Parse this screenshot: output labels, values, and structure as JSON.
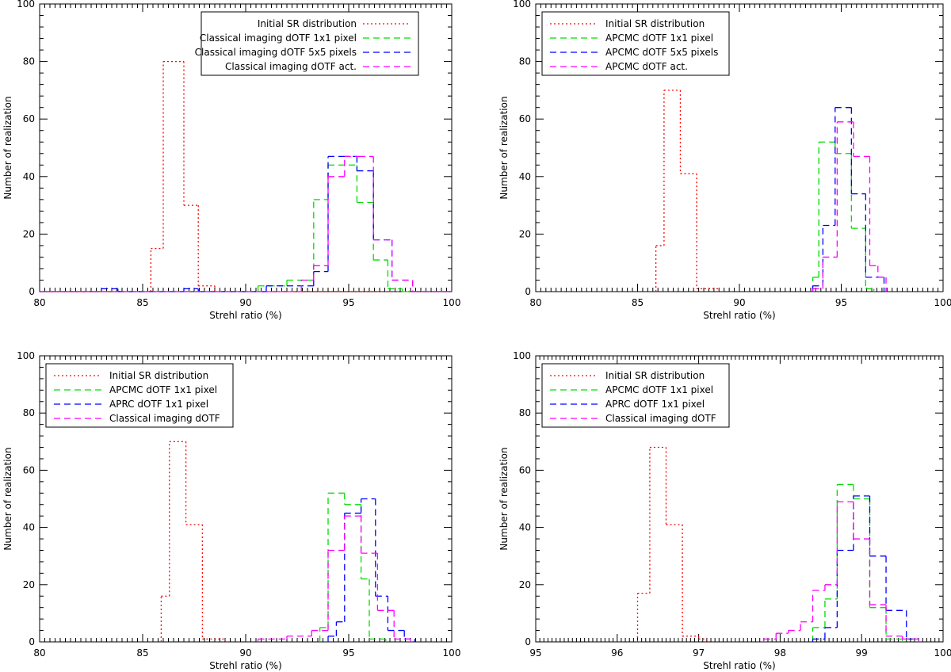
{
  "chart_data": [
    {
      "type": "histogram",
      "xlabel": "Strehl ratio (%)",
      "ylabel": "Number of realization",
      "xlim": [
        80,
        100
      ],
      "ylim": [
        0,
        100
      ],
      "xticks": [
        "80",
        "85",
        "90",
        "95",
        "100"
      ],
      "yticks": [
        "0",
        "20",
        "40",
        "60",
        "80",
        "100"
      ],
      "legend_position": "top-right",
      "legend_align": "right",
      "series": [
        {
          "name": "Initial SR distribution",
          "color": "#ff0000",
          "style": "dotted",
          "bins": [
            [
              80,
              85.4,
              0
            ],
            [
              85.4,
              86,
              15
            ],
            [
              86,
              87,
              80
            ],
            [
              87,
              87.7,
              30
            ],
            [
              87.7,
              88.5,
              2
            ],
            [
              88.5,
              100,
              0
            ]
          ]
        },
        {
          "name": "Classical imaging dOTF 1x1 pixel",
          "color": "#00dd00",
          "style": "dashed",
          "bins": [
            [
              80,
              90.6,
              0
            ],
            [
              90.6,
              92,
              2
            ],
            [
              92,
              93.3,
              4
            ],
            [
              93.3,
              94,
              32
            ],
            [
              94,
              95.4,
              44
            ],
            [
              95.4,
              96.2,
              31
            ],
            [
              96.2,
              96.9,
              11
            ],
            [
              96.9,
              97.6,
              1
            ],
            [
              97.6,
              100,
              0
            ]
          ]
        },
        {
          "name": "Classical imaging dOTF 5x5 pixels",
          "color": "#0000ff",
          "style": "dashed",
          "bins": [
            [
              80,
              83,
              0
            ],
            [
              83,
              83.8,
              1
            ],
            [
              83.8,
              87,
              0
            ],
            [
              87,
              87.7,
              1
            ],
            [
              87.7,
              91,
              0
            ],
            [
              91,
              92,
              2
            ],
            [
              92,
              93.3,
              2
            ],
            [
              93.3,
              94,
              7
            ],
            [
              94,
              94.7,
              47
            ],
            [
              94.7,
              95.4,
              47
            ],
            [
              95.4,
              96.2,
              42
            ],
            [
              96.2,
              97.1,
              18
            ],
            [
              97.1,
              98.1,
              4
            ],
            [
              98.1,
              100,
              0
            ]
          ]
        },
        {
          "name": "Classical imaging dOTF act.",
          "color": "#ff00ff",
          "style": "dashed",
          "bins": [
            [
              80,
              92.7,
              0
            ],
            [
              92.7,
              93.3,
              4
            ],
            [
              93.3,
              94,
              9
            ],
            [
              94,
              94.8,
              40
            ],
            [
              94.8,
              95.5,
              47
            ],
            [
              95.5,
              96.2,
              47
            ],
            [
              96.2,
              97.1,
              18
            ],
            [
              97.1,
              98.1,
              4
            ],
            [
              98.1,
              100,
              0
            ]
          ]
        }
      ]
    },
    {
      "type": "histogram",
      "xlabel": "Strehl ratio (%)",
      "ylabel": "Number of realization",
      "xlim": [
        80,
        100
      ],
      "ylim": [
        0,
        100
      ],
      "xticks": [
        "80",
        "85",
        "90",
        "95",
        "100"
      ],
      "yticks": [
        "0",
        "20",
        "40",
        "60",
        "80",
        "100"
      ],
      "legend_position": "top-left",
      "legend_align": "left",
      "series": [
        {
          "name": "Initial SR distribution",
          "color": "#ff0000",
          "style": "dotted",
          "bins": [
            [
              85.9,
              86.3,
              16
            ],
            [
              86.3,
              87.1,
              70
            ],
            [
              87.1,
              87.9,
              41
            ],
            [
              87.9,
              89,
              1
            ]
          ]
        },
        {
          "name": "APCMC dOTF 1x1 pixel",
          "color": "#00dd00",
          "style": "dashed",
          "bins": [
            [
              93.6,
              93.9,
              5
            ],
            [
              93.9,
              94.7,
              52
            ],
            [
              94.7,
              95.5,
              48
            ],
            [
              95.5,
              96.2,
              22
            ],
            [
              96.2,
              96.6,
              1
            ]
          ]
        },
        {
          "name": "APCMC dOTF 5x5 pixels",
          "color": "#0000ff",
          "style": "dashed",
          "bins": [
            [
              93.6,
              94.1,
              2
            ],
            [
              94.1,
              94.7,
              23
            ],
            [
              94.7,
              95.5,
              64
            ],
            [
              95.5,
              96.2,
              34
            ],
            [
              96.2,
              97.1,
              5
            ]
          ]
        },
        {
          "name": "APCMC dOTF act.",
          "color": "#ff00ff",
          "style": "dashed",
          "bins": [
            [
              93.6,
              94.1,
              1
            ],
            [
              94.1,
              94.8,
              12
            ],
            [
              94.8,
              95.6,
              59
            ],
            [
              95.6,
              96.4,
              47
            ],
            [
              96.4,
              96.8,
              9
            ],
            [
              96.8,
              97.2,
              5
            ]
          ]
        }
      ]
    },
    {
      "type": "histogram",
      "xlabel": "Strehl ratio (%)",
      "ylabel": "Number of realization",
      "xlim": [
        80,
        100
      ],
      "ylim": [
        0,
        100
      ],
      "xticks": [
        "80",
        "85",
        "90",
        "95",
        "100"
      ],
      "yticks": [
        "0",
        "20",
        "40",
        "60",
        "80",
        "100"
      ],
      "legend_position": "top-left",
      "legend_align": "left",
      "series": [
        {
          "name": "Initial SR distribution",
          "color": "#ff0000",
          "style": "dotted",
          "bins": [
            [
              85.9,
              86.3,
              16
            ],
            [
              86.3,
              87.1,
              70
            ],
            [
              87.1,
              87.9,
              41
            ],
            [
              87.9,
              89,
              1
            ]
          ]
        },
        {
          "name": "APCMC dOTF 1x1 pixel",
          "color": "#00dd00",
          "style": "dashed",
          "bins": [
            [
              93.6,
              94,
              5
            ],
            [
              94,
              94.8,
              52
            ],
            [
              94.8,
              95.6,
              48
            ],
            [
              95.6,
              96,
              22
            ],
            [
              96,
              96.8,
              1
            ]
          ]
        },
        {
          "name": "APRC dOTF 1x1 pixel",
          "color": "#0000ff",
          "style": "dashed",
          "bins": [
            [
              94,
              94.4,
              2
            ],
            [
              94.4,
              94.8,
              7
            ],
            [
              94.8,
              95.6,
              45
            ],
            [
              95.6,
              96.3,
              50
            ],
            [
              96.3,
              96.9,
              16
            ],
            [
              96.9,
              97.7,
              4
            ],
            [
              97.7,
              98.2,
              1
            ]
          ]
        },
        {
          "name": "Classical imaging dOTF",
          "color": "#ff00ff",
          "style": "dashed",
          "bins": [
            [
              90.6,
              92,
              1
            ],
            [
              92,
              93.2,
              2
            ],
            [
              93.2,
              94,
              4
            ],
            [
              94,
              94.8,
              32
            ],
            [
              94.8,
              95.6,
              44
            ],
            [
              95.6,
              96.4,
              31
            ],
            [
              96.4,
              97.2,
              11
            ],
            [
              97.2,
              98,
              1
            ]
          ]
        }
      ]
    },
    {
      "type": "histogram",
      "xlabel": "Strehl ratio (%)",
      "ylabel": "Number of realization",
      "xlim": [
        95,
        100
      ],
      "ylim": [
        0,
        100
      ],
      "xticks": [
        "95",
        "96",
        "97",
        "98",
        "99",
        "100"
      ],
      "yticks": [
        "0",
        "20",
        "40",
        "60",
        "80",
        "100"
      ],
      "legend_position": "top-left",
      "legend_align": "left",
      "series": [
        {
          "name": "Initial SR distribution",
          "color": "#ff0000",
          "style": "dotted",
          "bins": [
            [
              96.25,
              96.4,
              17
            ],
            [
              96.4,
              96.6,
              68
            ],
            [
              96.6,
              96.8,
              41
            ],
            [
              96.8,
              97,
              2
            ],
            [
              97,
              97.1,
              1
            ]
          ]
        },
        {
          "name": "APCMC dOTF 1x1 pixel",
          "color": "#00dd00",
          "style": "dashed",
          "bins": [
            [
              98.4,
              98.55,
              5
            ],
            [
              98.55,
              98.7,
              15
            ],
            [
              98.7,
              98.9,
              55
            ],
            [
              98.9,
              99.1,
              50
            ],
            [
              99.1,
              99.3,
              12
            ],
            [
              99.3,
              99.5,
              1
            ]
          ]
        },
        {
          "name": "APRC dOTF 1x1 pixel",
          "color": "#0000ff",
          "style": "dashed",
          "bins": [
            [
              98.4,
              98.55,
              1
            ],
            [
              98.55,
              98.7,
              5
            ],
            [
              98.7,
              98.9,
              32
            ],
            [
              98.9,
              99.1,
              51
            ],
            [
              99.1,
              99.3,
              30
            ],
            [
              99.3,
              99.55,
              11
            ],
            [
              99.55,
              99.7,
              1
            ]
          ]
        },
        {
          "name": "Classical imaging dOTF",
          "color": "#ff00ff",
          "style": "dashed",
          "bins": [
            [
              97.8,
              97.95,
              1
            ],
            [
              97.95,
              98.1,
              3
            ],
            [
              98.1,
              98.25,
              4
            ],
            [
              98.25,
              98.4,
              7
            ],
            [
              98.4,
              98.55,
              18
            ],
            [
              98.55,
              98.7,
              20
            ],
            [
              98.7,
              98.9,
              49
            ],
            [
              98.9,
              99.1,
              36
            ],
            [
              99.1,
              99.3,
              13
            ],
            [
              99.3,
              99.5,
              2
            ],
            [
              99.5,
              99.7,
              1
            ]
          ]
        }
      ]
    }
  ]
}
